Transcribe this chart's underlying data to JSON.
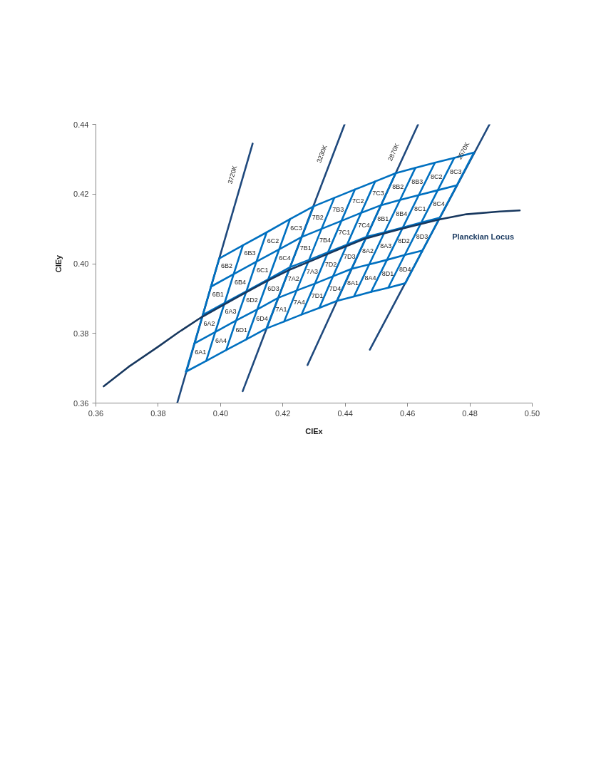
{
  "chart_data": {
    "type": "line",
    "xlabel": "CIEx",
    "ylabel": "CIEy",
    "xlim": [
      0.36,
      0.5
    ],
    "ylim": [
      0.36,
      0.44
    ],
    "xticks": [
      0.36,
      0.38,
      {
        "value": 0.4,
        "label": "0.40"
      },
      0.42,
      0.44,
      0.46,
      0.48,
      {
        "value": 0.5,
        "label": "0.50"
      }
    ],
    "yticks": [
      0.36,
      0.38,
      {
        "value": 0.4,
        "label": "0.40"
      },
      0.42,
      0.44
    ],
    "grid": false,
    "legend": false,
    "marker": "none",
    "line_style": "solid",
    "series": [
      {
        "name": "3720K",
        "color": "#1f497d",
        "x": [
          0.3861,
          0.4103
        ],
        "values": [
          0.36,
          0.4345
        ]
      },
      {
        "name": "3230K",
        "color": "#1f497d",
        "x": [
          0.4071,
          0.4398
        ],
        "values": [
          0.3634,
          0.44
        ]
      },
      {
        "name": "2870K",
        "color": "#1f497d",
        "x": [
          0.4279,
          0.4634
        ],
        "values": [
          0.3709,
          0.44
        ]
      },
      {
        "name": "2570K",
        "color": "#1f497d",
        "x": [
          0.4479,
          0.4863
        ],
        "values": [
          0.3753,
          0.44
        ]
      },
      {
        "color": "#0070c0",
        "x": [
          0.3889,
          0.3954,
          0.4018,
          0.4083,
          0.4147,
          0.4204,
          0.426,
          0.4317,
          0.4373,
          0.4428,
          0.4483,
          0.4538,
          0.4593
        ],
        "values": [
          0.369,
          0.3721,
          0.3752,
          0.3783,
          0.3814,
          0.3834,
          0.3854,
          0.3873,
          0.3893,
          0.3906,
          0.3919,
          0.3931,
          0.3944
        ]
      },
      {
        "color": "#0070c0",
        "x": [
          0.3916,
          0.3983,
          0.405,
          0.4118,
          0.4185,
          0.4244,
          0.4303,
          0.4361,
          0.442,
          0.4477,
          0.4534,
          0.4591,
          0.4648
        ],
        "values": [
          0.3771,
          0.3804,
          0.3837,
          0.3869,
          0.3902,
          0.3923,
          0.3943,
          0.3964,
          0.3985,
          0.3998,
          0.4011,
          0.4025,
          0.4038
        ]
      },
      {
        "color": "#0070c0",
        "x": [
          0.3943,
          0.4013,
          0.4083,
          0.4153,
          0.4223,
          0.4284,
          0.4345,
          0.4406,
          0.4468,
          0.4526,
          0.4585,
          0.4644,
          0.4703
        ],
        "values": [
          0.3853,
          0.3887,
          0.3921,
          0.3955,
          0.399,
          0.4011,
          0.4033,
          0.4055,
          0.4077,
          0.409,
          0.4104,
          0.4118,
          0.4132
        ]
      },
      {
        "color": "#0070c0",
        "x": [
          0.3969,
          0.4042,
          0.4115,
          0.4188,
          0.4261,
          0.4324,
          0.4388,
          0.4451,
          0.4515,
          0.4576,
          0.4636,
          0.4697,
          0.4758
        ],
        "values": [
          0.3934,
          0.397,
          0.4006,
          0.4041,
          0.4077,
          0.41,
          0.4123,
          0.4146,
          0.4168,
          0.4183,
          0.4197,
          0.4211,
          0.4225
        ]
      },
      {
        "color": "#0070c0",
        "x": [
          0.3996,
          0.4072,
          0.4148,
          0.4223,
          0.4299,
          0.4365,
          0.4431,
          0.4496,
          0.4562,
          0.4625,
          0.4688,
          0.475,
          0.4813
        ],
        "values": [
          0.4015,
          0.4053,
          0.409,
          0.4128,
          0.4165,
          0.4189,
          0.4213,
          0.4236,
          0.426,
          0.4275,
          0.429,
          0.4304,
          0.4319
        ]
      },
      {
        "color": "#0070c0",
        "x": [
          0.3889,
          0.3916,
          0.3943,
          0.3969,
          0.3996
        ],
        "values": [
          0.369,
          0.3771,
          0.3853,
          0.3934,
          0.4015
        ]
      },
      {
        "color": "#0070c0",
        "x": [
          0.3954,
          0.3983,
          0.4013,
          0.4042,
          0.4072
        ],
        "values": [
          0.3721,
          0.3804,
          0.3887,
          0.397,
          0.4053
        ]
      },
      {
        "color": "#0070c0",
        "x": [
          0.4018,
          0.405,
          0.4083,
          0.4115,
          0.4148
        ],
        "values": [
          0.3752,
          0.3837,
          0.3921,
          0.4006,
          0.409
        ]
      },
      {
        "color": "#0070c0",
        "x": [
          0.4083,
          0.4118,
          0.4153,
          0.4188,
          0.4223
        ],
        "values": [
          0.3783,
          0.3869,
          0.3955,
          0.4041,
          0.4128
        ]
      },
      {
        "color": "#0070c0",
        "x": [
          0.4147,
          0.4185,
          0.4223,
          0.4261,
          0.4299
        ],
        "values": [
          0.3814,
          0.3902,
          0.399,
          0.4077,
          0.4165
        ]
      },
      {
        "color": "#0070c0",
        "x": [
          0.4204,
          0.4244,
          0.4284,
          0.4324,
          0.4365
        ],
        "values": [
          0.3834,
          0.3923,
          0.4011,
          0.41,
          0.4189
        ]
      },
      {
        "color": "#0070c0",
        "x": [
          0.426,
          0.4303,
          0.4345,
          0.4388,
          0.4431
        ],
        "values": [
          0.3854,
          0.3943,
          0.4033,
          0.4123,
          0.4213
        ]
      },
      {
        "color": "#0070c0",
        "x": [
          0.4317,
          0.4361,
          0.4406,
          0.4451,
          0.4496
        ],
        "values": [
          0.3873,
          0.3964,
          0.4055,
          0.4146,
          0.4236
        ]
      },
      {
        "color": "#0070c0",
        "x": [
          0.4373,
          0.442,
          0.4468,
          0.4515,
          0.4562
        ],
        "values": [
          0.3893,
          0.3985,
          0.4077,
          0.4168,
          0.426
        ]
      },
      {
        "color": "#0070c0",
        "x": [
          0.4428,
          0.4477,
          0.4526,
          0.4576,
          0.4625
        ],
        "values": [
          0.3906,
          0.3998,
          0.409,
          0.4183,
          0.4275
        ]
      },
      {
        "color": "#0070c0",
        "x": [
          0.4483,
          0.4534,
          0.4585,
          0.4636,
          0.4688
        ],
        "values": [
          0.3919,
          0.4011,
          0.4104,
          0.4197,
          0.429
        ]
      },
      {
        "color": "#0070c0",
        "x": [
          0.4538,
          0.4591,
          0.4644,
          0.4697,
          0.475
        ],
        "values": [
          0.3931,
          0.4025,
          0.4118,
          0.4211,
          0.4304
        ]
      },
      {
        "color": "#0070c0",
        "x": [
          0.4593,
          0.4648,
          0.4703,
          0.4758,
          0.4813
        ],
        "values": [
          0.3944,
          0.4038,
          0.4132,
          0.4225,
          0.4319
        ]
      },
      {
        "name": "Planckian Locus",
        "color": "#17375e",
        "x": [
          0.3625,
          0.3705,
          0.38,
          0.3865,
          0.3938,
          0.4008,
          0.408,
          0.4151,
          0.422,
          0.4293,
          0.4346,
          0.4403,
          0.4461,
          0.4529,
          0.4583,
          0.4701,
          0.4789,
          0.4896,
          0.496
        ],
        "values": [
          0.3648,
          0.3704,
          0.3762,
          0.3803,
          0.3846,
          0.3881,
          0.3917,
          0.3951,
          0.3982,
          0.4009,
          0.4029,
          0.405,
          0.4071,
          0.4088,
          0.4101,
          0.4127,
          0.4142,
          0.415,
          0.4153
        ]
      }
    ],
    "annotations": [
      "6A1",
      "6A2",
      "6B1",
      "6B2",
      "6A4",
      "6A3",
      "6B4",
      "6B3",
      "6D1",
      "6D2",
      "6C1",
      "6C2",
      "6D4",
      "6D3",
      "6C4",
      "6C3",
      "7A1",
      "7A2",
      "7B1",
      "7B2",
      "7A4",
      "7A3",
      "7B4",
      "7B3",
      "7D1",
      "7D2",
      "7C1",
      "7C2",
      "7D4",
      "7D3",
      "7C4",
      "7C3",
      "8A1",
      "8A2",
      "8B1",
      "8B2",
      "8A4",
      "8A3",
      "8B4",
      "8B3",
      "8D1",
      "8D2",
      "8C1",
      "8C2",
      "8D4",
      "8D3",
      "8C4",
      "8C3"
    ]
  }
}
